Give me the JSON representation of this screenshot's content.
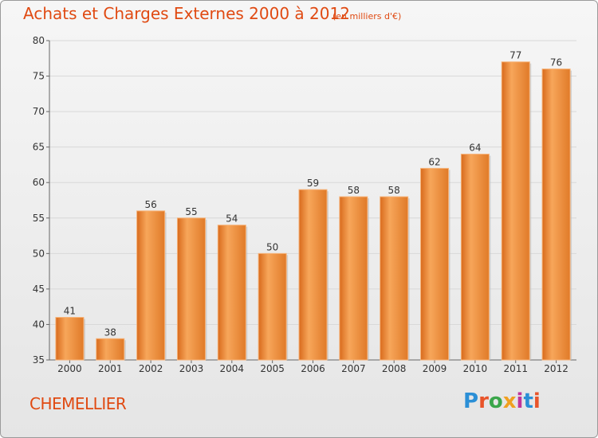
{
  "title": "Achats et Charges Externes 2000 à 2012",
  "subtitle": "(en milliers d'€)",
  "commune": "CHEMELLIER",
  "logo": {
    "letters": [
      "P",
      "r",
      "o",
      "x",
      "i",
      "t",
      "i"
    ],
    "colors": [
      "#2b8fd6",
      "#e8542a",
      "#3aa64a",
      "#f0a020",
      "#c0359a",
      "#2b8fd6",
      "#e8542a"
    ]
  },
  "colors": {
    "bar": "#f0903a",
    "title": "#e04a12",
    "grid": "#d8d8d8",
    "axis": "#666666"
  },
  "chart_data": {
    "type": "bar",
    "categories": [
      "2000",
      "2001",
      "2002",
      "2003",
      "2004",
      "2005",
      "2006",
      "2007",
      "2008",
      "2009",
      "2010",
      "2011",
      "2012"
    ],
    "values": [
      41,
      38,
      56,
      55,
      54,
      50,
      59,
      58,
      58,
      62,
      64,
      77,
      76
    ],
    "ylim": [
      35,
      80
    ],
    "yticks": [
      35,
      40,
      45,
      50,
      55,
      60,
      65,
      70,
      75,
      80
    ],
    "grid": true,
    "xlabel": "",
    "ylabel": ""
  }
}
